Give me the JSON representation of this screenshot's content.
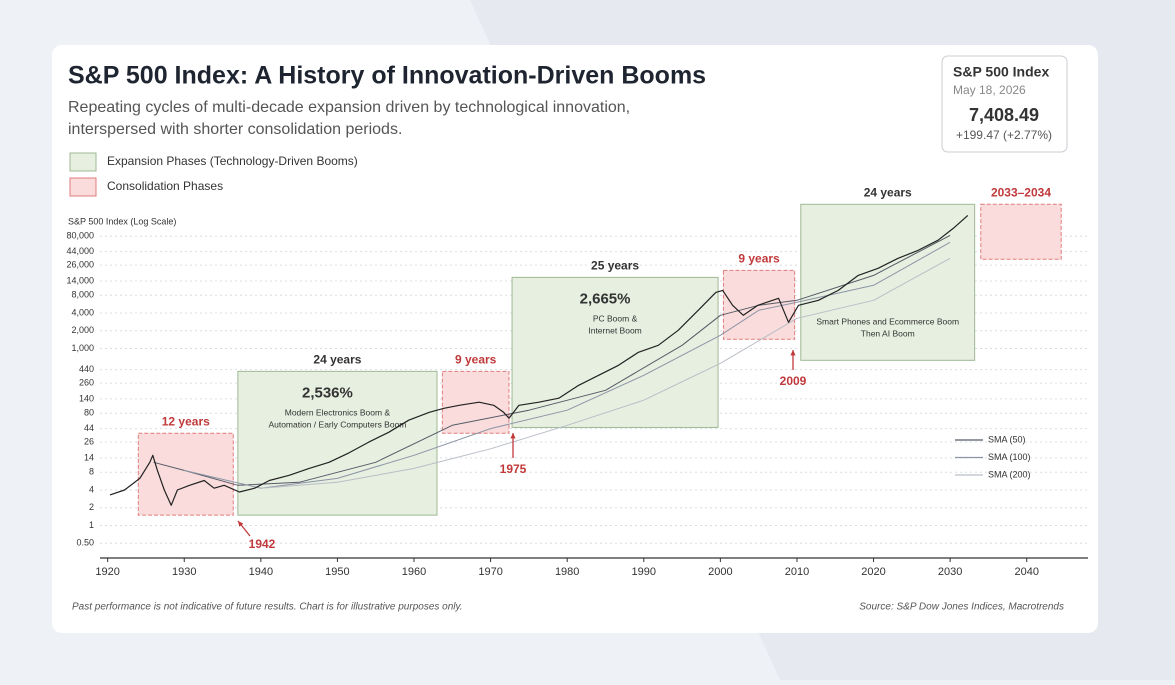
{
  "header": {
    "title": "S&P 500 Index: A History of Innovation-Driven Booms",
    "subtitle_lines": [
      "Repeating cycles of multi-decade expansion driven by technological innovation,",
      "interspersed with shorter consolidation periods."
    ]
  },
  "quote": {
    "name": "S&P 500 Index",
    "date": "May 18, 2026",
    "price": "7,408.49",
    "change": "+199.47 (+2.77%)"
  },
  "phase_legend": [
    "Expansion Phases (Technology-Driven Booms)",
    "Consolidation Phases"
  ],
  "footer": {
    "disclaimer": "Past performance is not indicative of future results. Chart is for illustrative purposes only.",
    "source": "Source: S&P Dow Jones Indices, Macrotrends"
  },
  "chart_data": {
    "type": "line",
    "y_label": "S&P 500 Index (Log Scale)",
    "log_scale": true,
    "grid": true,
    "xlim": [
      1919,
      2048
    ],
    "xticks": [
      1920,
      1930,
      1940,
      1950,
      1960,
      1970,
      1980,
      1990,
      2000,
      2010,
      2020,
      2030,
      2040
    ],
    "ylim": [
      0.4,
      330000
    ],
    "yticks": [
      {
        "value": 0.5,
        "label": "0.50"
      },
      1,
      2,
      4,
      8,
      14,
      26,
      44,
      80,
      140,
      260,
      440,
      {
        "value": 1000,
        "label": "1,000"
      },
      {
        "value": 2000,
        "label": "2,000"
      },
      {
        "value": 4000,
        "label": "4,000"
      },
      {
        "value": 8000,
        "label": "8,000"
      },
      {
        "value": 14000,
        "label": "14,000"
      },
      {
        "value": 26000,
        "label": "26,000"
      },
      {
        "value": 44000,
        "label": "44,000"
      },
      {
        "value": 80000,
        "label": "80,000"
      }
    ],
    "price": {
      "color": "#222222",
      "x": [
        1920.3,
        1922.2,
        1924.2,
        1925.5,
        1925.9,
        1926.5,
        1927.4,
        1928.3,
        1929.1,
        1930.7,
        1932.6,
        1933.9,
        1935.2,
        1937.2,
        1939.2,
        1941.1,
        1943.7,
        1946.3,
        1948.9,
        1951.5,
        1954.1,
        1956.7,
        1959.3,
        1962.0,
        1963.9,
        1965.9,
        1968.5,
        1970.4,
        1971.7,
        1972.4,
        1973.7,
        1976.3,
        1978.9,
        1981.5,
        1984.1,
        1986.7,
        1989.3,
        1991.9,
        1994.5,
        1997.1,
        1999.4,
        2000.3,
        2001.6,
        2003.0,
        2004.9,
        2007.6,
        2008.9,
        2010.2,
        2012.8,
        2015.4,
        2018.0,
        2020.6,
        2023.2,
        2025.8,
        2028.4,
        2030.4,
        2032.3
      ],
      "values": [
        3.3,
        4.0,
        6.3,
        11.8,
        15.5,
        8.6,
        4.0,
        2.2,
        4.0,
        4.8,
        5.8,
        4.3,
        4.8,
        3.7,
        4.3,
        5.8,
        7.1,
        9.3,
        11.8,
        17,
        26,
        38,
        61,
        83,
        97,
        109,
        123,
        109,
        83,
        66,
        109,
        123,
        144,
        238,
        352,
        520,
        863,
        1135,
        2040,
        4450,
        8970,
        9700,
        5410,
        3660,
        5410,
        7110,
        2790,
        5410,
        6580,
        9700,
        17400,
        22900,
        33900,
        46200,
        68400,
        109000,
        181000
      ]
    },
    "series": [
      {
        "name": "SMA (50)",
        "color": "#555b66",
        "x": [
          1926,
          1930,
          1937,
          1945,
          1955,
          1965,
          1975,
          1985,
          1995,
          2000,
          2005,
          2010,
          2020,
          2030
        ],
        "values": [
          11.8,
          8.6,
          4.8,
          5.4,
          11.8,
          50,
          90,
          196,
          1135,
          3660,
          5410,
          6580,
          17400,
          83000
        ]
      },
      {
        "name": "SMA (100)",
        "color": "#8c95a6",
        "x": [
          1930,
          1940,
          1950,
          1960,
          1970,
          1980,
          1990,
          2000,
          2005,
          2010,
          2020,
          2030
        ],
        "values": [
          8.6,
          4.3,
          6.3,
          15.5,
          44,
          90,
          352,
          1680,
          4450,
          6080,
          11800,
          63200
        ]
      },
      {
        "name": "SMA (200)",
        "color": "#b9bec6",
        "x": [
          1940,
          1950,
          1960,
          1970,
          1980,
          1990,
          2000,
          2010,
          2020,
          2030
        ],
        "values": [
          4.3,
          5.4,
          9.3,
          20,
          50,
          133,
          562,
          3260,
          6580,
          33900
        ]
      }
    ],
    "phase_colors": {
      "expansion": {
        "fill": "#e6efe0",
        "stroke": "#9fb994",
        "label": "#333333"
      },
      "consolidation": {
        "fill": "#fadcdc",
        "stroke": "#e07c7c",
        "label": "#c0393b"
      }
    },
    "phases": [
      {
        "kind": "consolidation",
        "start": 1924.0,
        "end": 1936.4,
        "low": 1.5,
        "high": 36.6,
        "duration": "12 years"
      },
      {
        "kind": "expansion",
        "start": 1937.0,
        "end": 1963.0,
        "low": 1.5,
        "high": 411,
        "duration": "24 years",
        "gain": "2,536%",
        "description": [
          "Modern Electronics Boom &",
          "Automation / Early Computers Boom"
        ]
      },
      {
        "kind": "consolidation",
        "start": 1963.7,
        "end": 1972.4,
        "low": 36.6,
        "high": 411,
        "duration": "9 years"
      },
      {
        "kind": "expansion",
        "start": 1972.8,
        "end": 1999.7,
        "low": 46,
        "high": 16100,
        "duration": "25 years",
        "gain": "2,665%",
        "description": [
          "PC Boom &",
          "Internet Boom"
        ]
      },
      {
        "kind": "consolidation",
        "start": 2000.4,
        "end": 2009.7,
        "low": 1435,
        "high": 21200,
        "duration": "9 years"
      },
      {
        "kind": "expansion",
        "start": 2010.5,
        "end": 2033.2,
        "low": 632,
        "high": 279000,
        "duration": "24 years",
        "description": [
          "Smart Phones and Ecommerce Boom",
          "Then AI Boom"
        ]
      },
      {
        "kind": "consolidation",
        "start": 2034.0,
        "end": 2044.5,
        "low": 32600,
        "high": 279000,
        "duration": "2033–2034"
      }
    ],
    "annotations": [
      "1942",
      "1975",
      "2009"
    ]
  }
}
